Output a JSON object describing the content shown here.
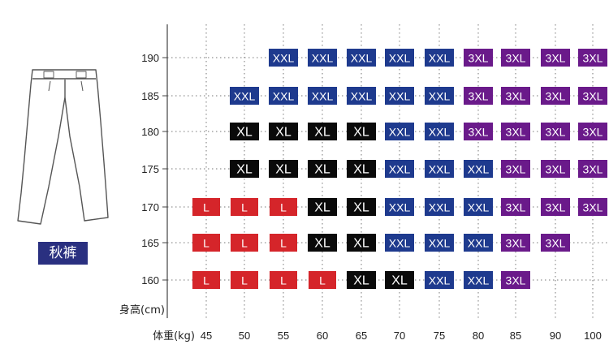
{
  "product": {
    "label": "秋裤",
    "label_color": "#2a3080",
    "image_icon": "pants-icon"
  },
  "size_chart": {
    "ylabel": "身高(cm)",
    "xlabel": "体重(kg)",
    "heights": [
      190,
      185,
      180,
      175,
      170,
      165,
      160
    ],
    "weights": [
      45,
      50,
      55,
      60,
      65,
      70,
      75,
      80,
      85,
      90,
      100
    ],
    "rows": [
      [
        null,
        null,
        "XXL",
        "XXL",
        "XXL",
        "XXL",
        "XXL",
        "3XL",
        "3XL",
        "3XL",
        "3XL"
      ],
      [
        null,
        "XXL",
        "XXL",
        "XXL",
        "XXL",
        "XXL",
        "XXL",
        "3XL",
        "3XL",
        "3XL",
        "3XL"
      ],
      [
        null,
        "XL",
        "XL",
        "XL",
        "XL",
        "XXL",
        "XXL",
        "3XL",
        "3XL",
        "3XL",
        "3XL"
      ],
      [
        null,
        "XL",
        "XL",
        "XL",
        "XL",
        "XXL",
        "XXL",
        "XXL",
        "3XL",
        "3XL",
        "3XL"
      ],
      [
        "L",
        "L",
        "L",
        "XL",
        "XL",
        "XXL",
        "XXL",
        "XXL",
        "3XL",
        "3XL",
        "3XL"
      ],
      [
        "L",
        "L",
        "L",
        "XL",
        "XL",
        "XXL",
        "XXL",
        "XXL",
        "3XL",
        "3XL",
        null
      ],
      [
        "L",
        "L",
        "L",
        "L",
        "XL",
        "XL",
        "XXL",
        "XXL",
        "3XL",
        null,
        null
      ]
    ],
    "size_colors": {
      "L": "#d5252a",
      "XL": "#0a0a0a",
      "XXL": "#1e3a8e",
      "3XL": "#6a1a8a"
    },
    "grid": true
  }
}
